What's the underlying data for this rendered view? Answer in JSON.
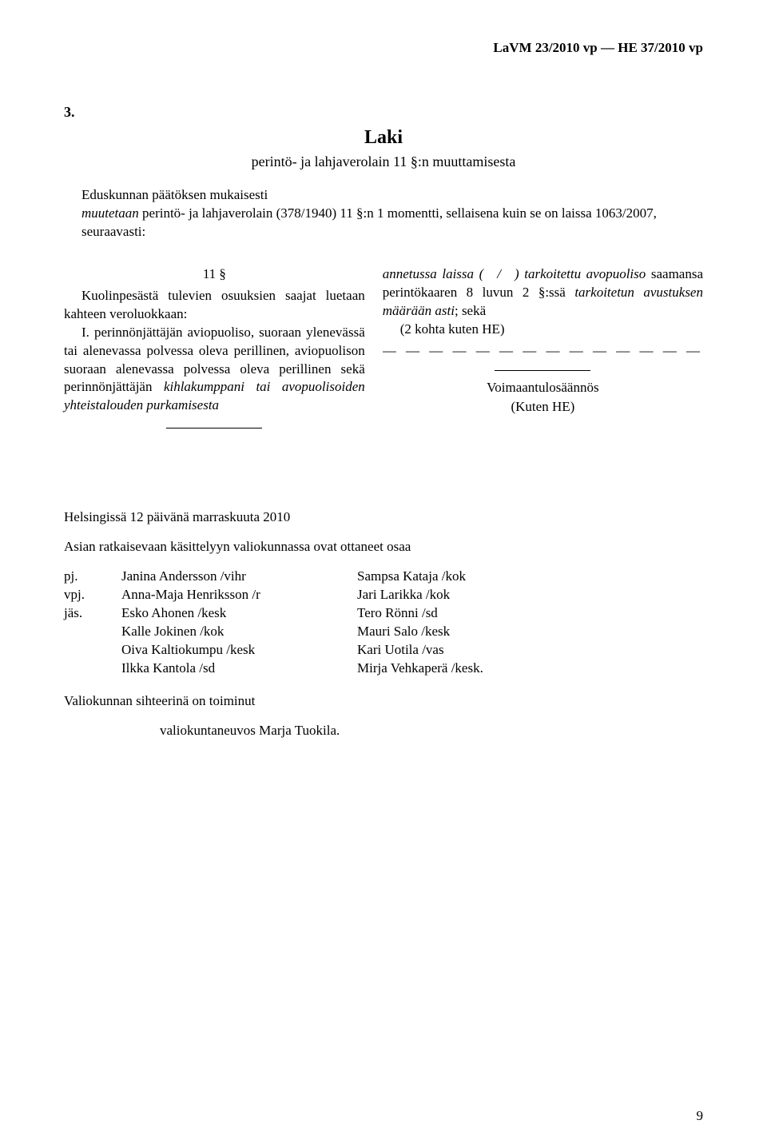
{
  "header": "LaVM 23/2010 vp — HE 37/2010 vp",
  "section_number": "3.",
  "law_title": "Laki",
  "law_subtitle": "perintö- ja lahjaverolain 11 §:n muuttamisesta",
  "preamble_line1": "Eduskunnan päätöksen mukaisesti",
  "preamble_line2a": "muutetaan",
  "preamble_line2b": " perintö- ja lahjaverolain (378/1940) 11 §:n 1 momentti, sellaisena kuin se on laissa 1063/2007, seuraavasti:",
  "left_col": {
    "sect": "11 §",
    "p1": "Kuolinpesästä tulevien osuuksien saajat luetaan kahteen veroluokkaan:",
    "p2a": "I. perinnönjättäjän aviopuoliso, suoraan ylenevässä tai alenevassa polvessa oleva perillinen, aviopuolison suoraan alenevassa polvessa oleva perillinen sekä perinnönjättäjän ",
    "p2b": "kihlakumppani tai avopuolisoiden yhteistalouden purkamisesta"
  },
  "right_col": {
    "p1a": "annetussa laissa ( / ) tarkoitettu avopuoliso",
    "p1b": " saamansa perintökaaren 8 luvun 2 §:ssä ",
    "p1c": "tarkoitetun avustuksen määrään asti",
    "p1d": "; sekä",
    "p2": "(2 kohta kuten HE)",
    "dashes": "— — — — — — — — — — — — — —",
    "voimaan_title": "Voimaantulosäännös",
    "voimaan_sub": "(Kuten HE)"
  },
  "footer": {
    "dateline": "Helsingissä 12 päivänä marraskuuta 2010",
    "intro": "Asian ratkaisevaan käsittelyyn valiokunnassa ovat ottaneet osaa",
    "roles": [
      "pj.",
      "vpj.",
      "jäs."
    ],
    "left_members": [
      "Janina Andersson /vihr",
      "Anna-Maja Henriksson /r",
      "Esko Ahonen /kesk",
      "Kalle Jokinen /kok",
      "Oiva Kaltiokumpu /kesk",
      "Ilkka Kantola /sd"
    ],
    "right_members": [
      "Sampsa Kataja /kok",
      "Jari Larikka /kok",
      "Tero Rönni /sd",
      "Mauri Salo /kesk",
      "Kari Uotila /vas",
      "Mirja Vehkaperä /kesk."
    ],
    "secretary_intro": "Valiokunnan sihteerinä on toiminut",
    "secretary_name": "valiokuntaneuvos Marja Tuokila."
  },
  "page_number": "9"
}
